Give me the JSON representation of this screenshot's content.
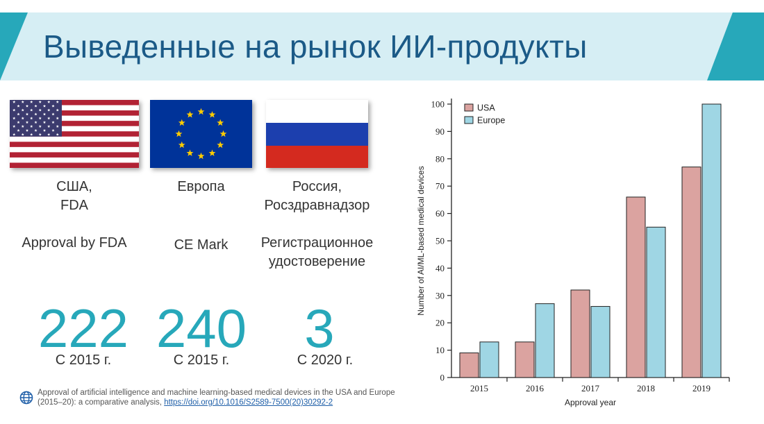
{
  "title": "Выведенные на рынок ИИ-продукты",
  "columns": [
    {
      "region": "США,\nFDA",
      "approval": "Approval by FDA",
      "count": "222",
      "since": "С 2015 г."
    },
    {
      "region": "Европа",
      "approval": "CE Mark",
      "count": "240",
      "since": "С 2015 г."
    },
    {
      "region": "Россия,\nРосздравнадзор",
      "approval": "Регистрационное\nудостоверение",
      "count": "3",
      "since": "С 2020 г."
    }
  ],
  "footnote": {
    "text": "Approval of artificial intelligence and machine learning-based medical devices in the USA and Europe (2015–20): a comparative analysis, ",
    "link": "https://doi.org/10.1016/S2589-7500(20)30292-2"
  },
  "colors": {
    "usa": "#dba3a0",
    "europe": "#9fd6e4",
    "accent": "#27a8ba",
    "title": "#1b5a87"
  },
  "icons": [
    "us-flag",
    "eu-flag",
    "ru-flag",
    "globe-icon"
  ],
  "chart_data": {
    "type": "bar",
    "categories": [
      "2015",
      "2016",
      "2017",
      "2018",
      "2019"
    ],
    "series": [
      {
        "name": "USA",
        "values": [
          9,
          13,
          32,
          66,
          77
        ]
      },
      {
        "name": "Europe",
        "values": [
          13,
          27,
          26,
          55,
          100
        ]
      }
    ],
    "xlabel": "Approval year",
    "ylabel": "Number of AI/ML-based medical devices",
    "ylim": [
      0,
      100
    ],
    "yticks": [
      0,
      10,
      20,
      30,
      40,
      50,
      60,
      70,
      80,
      90,
      100
    ],
    "legend": "top-left",
    "grid": false
  }
}
